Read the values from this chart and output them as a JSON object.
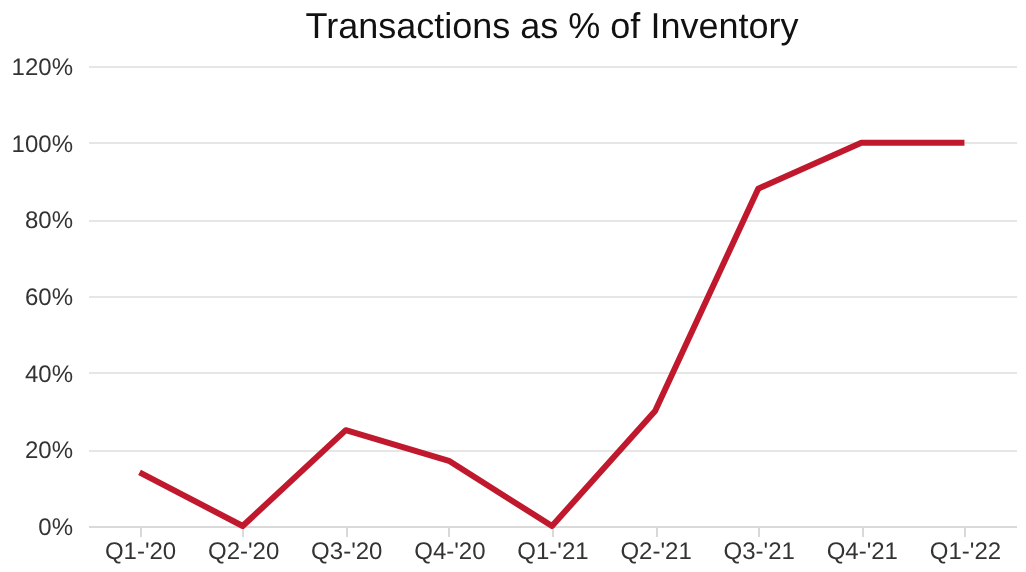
{
  "chart_data": {
    "type": "line",
    "title": "Transactions as % of Inventory",
    "categories": [
      "Q1-'20",
      "Q2-'20",
      "Q3-'20",
      "Q4-'20",
      "Q1-'21",
      "Q2-'21",
      "Q3-'21",
      "Q4-'21",
      "Q1-'22"
    ],
    "series": [
      {
        "color": "#c0192e",
        "values": [
          14,
          0,
          25,
          17,
          0,
          30,
          88,
          100,
          100
        ]
      }
    ],
    "ylim": [
      0,
      120
    ],
    "yticks": [
      {
        "value": 0,
        "label": "0%"
      },
      {
        "value": 20,
        "label": "20%"
      },
      {
        "value": 40,
        "label": "40%"
      },
      {
        "value": 60,
        "label": "60%"
      },
      {
        "value": 80,
        "label": "80%"
      },
      {
        "value": 100,
        "label": "100%"
      },
      {
        "value": 120,
        "label": "120%"
      }
    ],
    "grid": "y",
    "legend": false,
    "marker": "none",
    "line_style": "solid"
  }
}
